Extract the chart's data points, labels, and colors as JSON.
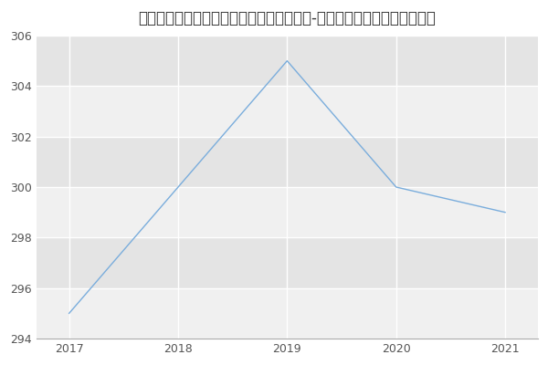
{
  "title": "南通大学医学院、药学院临床检验诊断学（-历年复试）研究生录取分数线",
  "x": [
    2017,
    2018,
    2019,
    2020,
    2021
  ],
  "y": [
    295,
    300,
    305,
    300,
    299
  ],
  "line_color": "#7aaddc",
  "fig_bg_color": "#ffffff",
  "plot_bg_color": "#ebebeb",
  "band_color_light": "#f0f0f0",
  "band_color_dark": "#e4e4e4",
  "ylim": [
    294,
    306
  ],
  "xlim": [
    2016.7,
    2021.3
  ],
  "yticks": [
    294,
    296,
    298,
    300,
    302,
    304,
    306
  ],
  "xticks": [
    2017,
    2018,
    2019,
    2020,
    2021
  ],
  "title_fontsize": 12,
  "tick_fontsize": 9,
  "grid_color": "#ffffff",
  "line_width": 1.0,
  "title_color": "#333333",
  "tick_color": "#555555"
}
